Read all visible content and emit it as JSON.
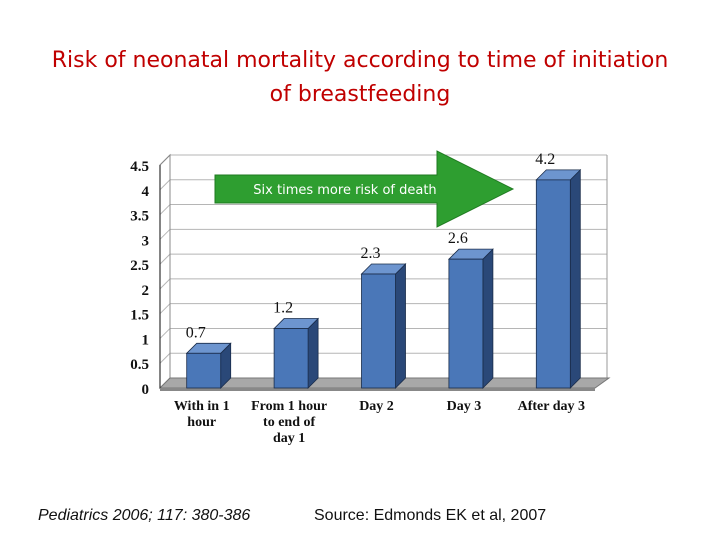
{
  "slide": {
    "title_line1": "Risk of neonatal mortality according to time of initiation",
    "title_line2": "of breastfeeding",
    "citation": "Pediatrics 2006; 117: 380-386",
    "source": "Source: Edmonds EK et al, 2007"
  },
  "chart_data": {
    "type": "bar",
    "title": "",
    "xlabel": "",
    "ylabel": "",
    "ylim": [
      0,
      4.5
    ],
    "yticks": [
      "0",
      "0.5",
      "1",
      "1.5",
      "2",
      "2.5",
      "3",
      "3.5",
      "4",
      "4.5"
    ],
    "categories": [
      [
        "With in 1",
        "hour"
      ],
      [
        "From 1 hour",
        "to end of",
        "day 1"
      ],
      [
        "Day 2"
      ],
      [
        "Day 3"
      ],
      [
        "After day 3"
      ]
    ],
    "values": [
      0.7,
      1.2,
      2.3,
      2.6,
      4.2
    ],
    "data_labels": [
      "0.7",
      "1.2",
      "2.3",
      "2.6",
      "4.2"
    ],
    "annotation": "Six times more risk of death",
    "grid": true,
    "colors": {
      "bar_front": "#4a77b8",
      "bar_side": "#2a4878",
      "bar_top": "#6d95cf",
      "arrow": "#2e9e30",
      "floor": "#a8a8a8",
      "grid": "#b5b5b5"
    }
  }
}
